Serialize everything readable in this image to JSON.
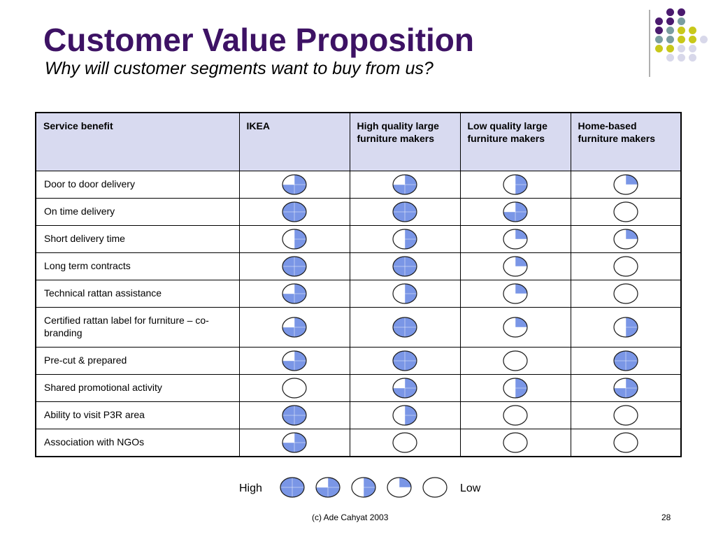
{
  "slide": {
    "title": "Customer Value Proposition",
    "subtitle": "Why will customer segments want to buy from us?",
    "footer": "(c) Ade Cahyat 2003",
    "page_number": "28"
  },
  "colors": {
    "title": "#3d1264",
    "header_fill": "#d8daf0",
    "ball_fill": "#7a96e6",
    "ball_stroke": "#1a1a1a",
    "dot_purple": "#4a1a6e",
    "dot_teal": "#7a9ea0",
    "dot_yellow": "#c8c81a",
    "dot_lavender": "#d8d8ea"
  },
  "table": {
    "headers": [
      "Service benefit",
      "IKEA",
      "High quality large furniture makers",
      "Low quality large furniture makers",
      "Home-based furniture makers"
    ],
    "rows": [
      {
        "benefit": "Door to door delivery",
        "scores": [
          3,
          3,
          2,
          1
        ]
      },
      {
        "benefit": "On time delivery",
        "scores": [
          4,
          4,
          3,
          0
        ]
      },
      {
        "benefit": "Short delivery time",
        "scores": [
          2,
          2,
          1,
          1
        ]
      },
      {
        "benefit": "Long term contracts",
        "scores": [
          4,
          4,
          1,
          0
        ]
      },
      {
        "benefit": "Technical rattan assistance",
        "scores": [
          3,
          2,
          1,
          0
        ]
      },
      {
        "benefit": "Certified rattan label for furniture – co-branding",
        "scores": [
          3,
          4,
          1,
          2
        ]
      },
      {
        "benefit": "Pre-cut & prepared",
        "scores": [
          3,
          4,
          0,
          4
        ]
      },
      {
        "benefit": "Shared promotional activity",
        "scores": [
          0,
          3,
          2,
          3
        ]
      },
      {
        "benefit": "Ability to visit P3R area",
        "scores": [
          4,
          2,
          0,
          0
        ]
      },
      {
        "benefit": "Association with NGOs",
        "scores": [
          3,
          0,
          0,
          0
        ]
      }
    ]
  },
  "legend": {
    "high_label": "High",
    "low_label": "Low",
    "scale": [
      4,
      3,
      2,
      1,
      0
    ]
  }
}
